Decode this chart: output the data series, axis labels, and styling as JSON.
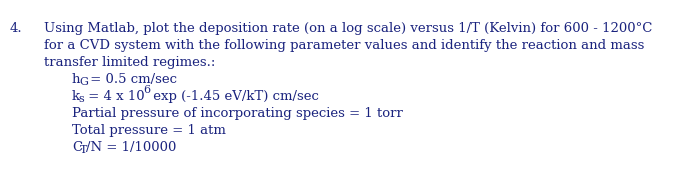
{
  "number": "4.",
  "line1": "Using Matlab, plot the deposition rate (on a log scale) versus 1/T (Kelvin) for 600 - 1200°C",
  "line2": "for a CVD system with the following parameter values and identify the reaction and mass",
  "line3": "transfer limited regimes.:",
  "param3": "Partial pressure of incorporating species = 1 torr",
  "param4": "Total pressure = 1 atm",
  "background_color": "#ffffff",
  "text_color": "#1a237e",
  "font_size": 9.5,
  "fig_width": 6.88,
  "fig_height": 1.84,
  "dpi": 100
}
